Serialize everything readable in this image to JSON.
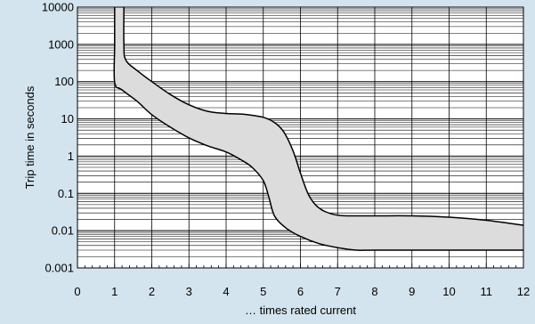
{
  "chart_data": {
    "type": "area",
    "title": "",
    "xlabel": "… times rated current",
    "ylabel": "Trip time in seconds",
    "x_ticks": [
      "0",
      "1",
      "2",
      "3",
      "4",
      "5",
      "6",
      "7",
      "8",
      "9",
      "10",
      "11",
      "12"
    ],
    "y_ticks": [
      "0.001",
      "0.01",
      "0.1",
      "1",
      "10",
      "100",
      "1000",
      "10000"
    ],
    "xlim": [
      0,
      12
    ],
    "ylim": [
      0.001,
      10000
    ],
    "y_scale": "log",
    "grid": true,
    "colors": {
      "background": "#d4e4ee",
      "plot_area": "#ffffff",
      "band_fill": "#dcdcdc",
      "curve": "#000000",
      "grid": "#000000"
    },
    "series": [
      {
        "role": "upper-curve",
        "x": [
          1.25,
          1.25,
          1.3,
          1.6,
          2.0,
          2.5,
          3.0,
          3.5,
          4.0,
          4.5,
          5.0,
          5.3,
          5.55,
          5.8,
          6.0,
          6.2,
          6.4,
          6.6,
          6.8,
          7.0,
          7.3,
          8.0,
          9.0,
          10.0,
          11.0,
          12.0
        ],
        "y": [
          10000,
          1000,
          380,
          200,
          100,
          45,
          24,
          16,
          14,
          13.2,
          11,
          8,
          4.5,
          1.4,
          0.35,
          0.1,
          0.05,
          0.035,
          0.029,
          0.026,
          0.025,
          0.025,
          0.025,
          0.023,
          0.019,
          0.014
        ]
      },
      {
        "role": "lower-curve",
        "x": [
          1.0,
          1.0,
          1.0,
          1.2,
          1.6,
          2.0,
          2.5,
          3.0,
          3.5,
          4.0,
          4.4,
          4.7,
          5.0,
          5.15,
          5.3,
          5.6,
          6.0,
          6.5,
          7.0,
          7.5,
          8.0,
          10.0,
          12.0
        ],
        "y": [
          10000,
          1000,
          95,
          60,
          30,
          13,
          6,
          3.1,
          1.9,
          1.3,
          0.8,
          0.5,
          0.22,
          0.08,
          0.025,
          0.012,
          0.007,
          0.0045,
          0.0035,
          0.003,
          0.003,
          0.003,
          0.003
        ]
      }
    ]
  }
}
